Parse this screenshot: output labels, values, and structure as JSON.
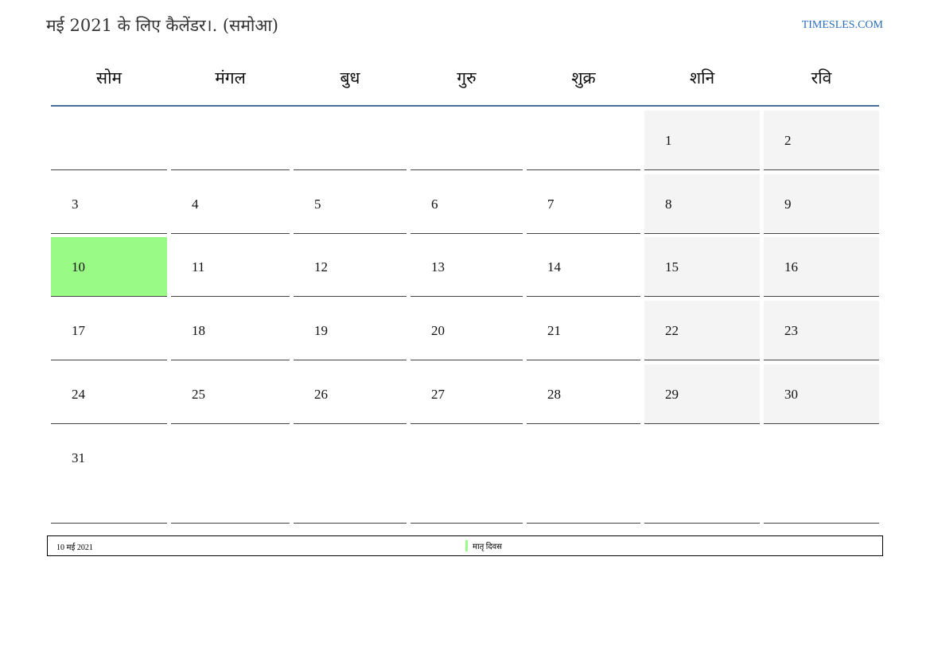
{
  "title": "मई 2021 के लिए कैलेंडर।. (समोआ)",
  "site": "TIMESLES.COM",
  "weekdays": [
    "सोम",
    "मंगल",
    "बुध",
    "गुरु",
    "शुक्र",
    "शनि",
    "रवि"
  ],
  "first_weekday_index": 5,
  "days_in_month": 31,
  "today": 10,
  "colors": {
    "today": "#9afa86",
    "weekend": "#f4f4f4",
    "header_line": "#4a6d98",
    "link": "#2a6ebb"
  },
  "footer": {
    "date": "10 मई 2021",
    "event": "मातृ दिवस"
  }
}
